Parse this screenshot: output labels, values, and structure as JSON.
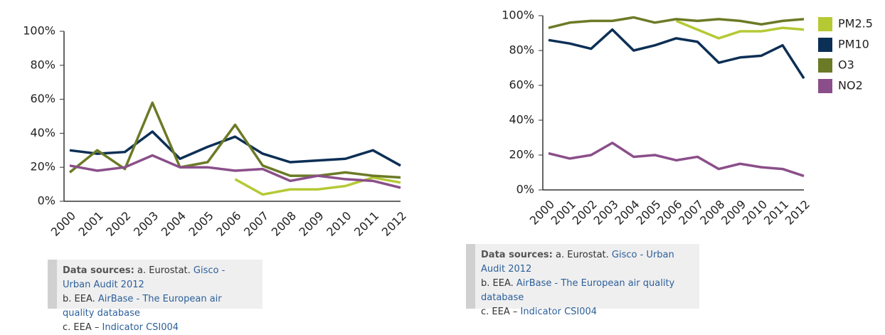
{
  "chart_data": [
    {
      "type": "line",
      "categories": [
        "2000",
        "2001",
        "2002",
        "2003",
        "2004",
        "2005",
        "2006",
        "2007",
        "2008",
        "2009",
        "2010",
        "2011",
        "2012"
      ],
      "series": [
        {
          "color": "#b5c934",
          "values": [
            null,
            null,
            null,
            null,
            null,
            null,
            13,
            4,
            7,
            7,
            9,
            14,
            11
          ]
        },
        {
          "color": "#0c2f55",
          "values": [
            30,
            28,
            29,
            41,
            25,
            32,
            38,
            28,
            23,
            24,
            25,
            30,
            21
          ]
        },
        {
          "color": "#6b7a26",
          "values": [
            17,
            30,
            19,
            58,
            20,
            23,
            45,
            21,
            15,
            15,
            17,
            15,
            14
          ]
        },
        {
          "color": "#8a4f8a",
          "values": [
            21,
            18,
            20,
            27,
            20,
            20,
            18,
            19,
            12,
            15,
            13,
            12,
            8
          ]
        }
      ],
      "ylim": [
        0,
        100
      ],
      "yticks": [
        {
          "value": 0,
          "label": "0%"
        },
        {
          "value": 20,
          "label": "20%"
        },
        {
          "value": 40,
          "label": "40%"
        },
        {
          "value": 60,
          "label": "60%"
        },
        {
          "value": 80,
          "label": "80%"
        },
        {
          "value": 100,
          "label": "100%"
        }
      ],
      "legend": false
    },
    {
      "type": "line",
      "categories": [
        "2000",
        "2001",
        "2002",
        "2003",
        "2004",
        "2005",
        "2006",
        "2007",
        "2008",
        "2009",
        "2010",
        "2011",
        "2012"
      ],
      "series": [
        {
          "name": "PM2.5",
          "color": "#b5c934",
          "values": [
            null,
            null,
            null,
            null,
            null,
            null,
            97,
            92,
            87,
            91,
            91,
            93,
            92
          ]
        },
        {
          "name": "PM10",
          "color": "#0c2f55",
          "values": [
            86,
            84,
            81,
            92,
            80,
            83,
            87,
            85,
            73,
            76,
            77,
            83,
            64
          ]
        },
        {
          "name": "O3",
          "color": "#6b7a26",
          "values": [
            93,
            96,
            97,
            97,
            99,
            96,
            98,
            97,
            98,
            97,
            95,
            97,
            98
          ]
        },
        {
          "name": "NO2",
          "color": "#8a4f8a",
          "values": [
            21,
            18,
            20,
            27,
            19,
            20,
            17,
            19,
            12,
            15,
            13,
            12,
            8
          ]
        }
      ],
      "ylim": [
        0,
        100
      ],
      "yticks": [
        {
          "value": 0,
          "label": "0%"
        },
        {
          "value": 20,
          "label": "20%"
        },
        {
          "value": 40,
          "label": "40%"
        },
        {
          "value": 60,
          "label": "60%"
        },
        {
          "value": 80,
          "label": "80%"
        },
        {
          "value": 100,
          "label": "100%"
        }
      ],
      "legend": "right"
    }
  ],
  "notes": [
    {
      "title": "Data sources:",
      "lines": [
        {
          "prefix": "a. Eurostat.",
          "link": "Gisco - Urban Audit 2012"
        },
        {
          "prefix": "b. EEA.",
          "link": "AirBase - The European air quality database"
        },
        {
          "prefix": "c. EEA –",
          "link": "Indicator CSI004"
        }
      ]
    },
    {
      "title": "Data sources:",
      "lines": [
        {
          "prefix": "a. Eurostat.",
          "link": "Gisco - Urban Audit 2012"
        },
        {
          "prefix": "b. EEA.",
          "link": "AirBase - The European air quality database"
        },
        {
          "prefix": "c. EEA –",
          "link": "Indicator CSI004"
        }
      ]
    }
  ]
}
